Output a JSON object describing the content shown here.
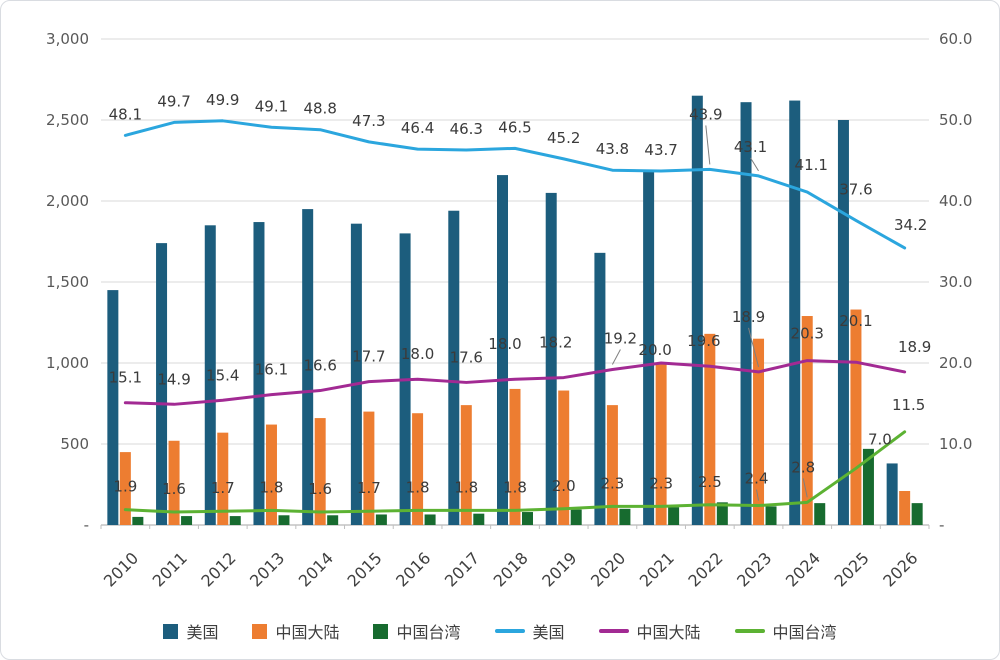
{
  "chart_data": {
    "type": "bar",
    "subtype": "combo-bar-line-dual-axis",
    "categories": [
      "2010",
      "2011",
      "2012",
      "2013",
      "2014",
      "2015",
      "2016",
      "2017",
      "2018",
      "2019",
      "2020",
      "2021",
      "2022",
      "2023",
      "2024",
      "2025",
      "2026"
    ],
    "bar_series": [
      {
        "name": "美国",
        "color": "#1c5d7d",
        "axis": "left",
        "values": [
          1450,
          1740,
          1850,
          1870,
          1950,
          1860,
          1800,
          1940,
          2160,
          2050,
          1680,
          2190,
          2650,
          2610,
          2620,
          2500,
          380
        ]
      },
      {
        "name": "中国大陆",
        "color": "#ed7d31",
        "axis": "left",
        "values": [
          450,
          520,
          570,
          620,
          660,
          700,
          690,
          740,
          840,
          830,
          740,
          1000,
          1180,
          1150,
          1290,
          1330,
          210
        ]
      },
      {
        "name": "中国台湾",
        "color": "#176b2f",
        "axis": "left",
        "values": [
          50,
          55,
          55,
          60,
          60,
          65,
          65,
          70,
          80,
          95,
          100,
          110,
          140,
          115,
          135,
          470,
          135
        ]
      }
    ],
    "line_series": [
      {
        "name": "美国",
        "color": "#2ba6de",
        "axis": "right",
        "values": [
          48.1,
          49.7,
          49.9,
          49.1,
          48.8,
          47.3,
          46.4,
          46.3,
          46.5,
          45.2,
          43.8,
          43.7,
          43.9,
          43.1,
          41.1,
          37.6,
          34.2
        ]
      },
      {
        "name": "中国大陆",
        "color": "#a22a93",
        "axis": "right",
        "values": [
          15.1,
          14.9,
          15.4,
          16.1,
          16.6,
          17.7,
          18.0,
          17.6,
          18.0,
          18.2,
          19.2,
          20.0,
          19.6,
          18.9,
          20.3,
          20.1,
          18.9
        ]
      },
      {
        "name": "中国台湾",
        "color": "#5cb233",
        "axis": "right",
        "values": [
          1.9,
          1.6,
          1.7,
          1.8,
          1.6,
          1.7,
          1.8,
          1.8,
          1.8,
          2.0,
          2.3,
          2.3,
          2.5,
          2.4,
          2.8,
          7.0,
          11.5
        ]
      }
    ],
    "left_axis": {
      "min": 0,
      "max": 3000,
      "step": 500,
      "tick_labels": [
        "3,000",
        "2,500",
        "2,000",
        "1,500",
        "1,000",
        "500",
        "-"
      ]
    },
    "right_axis": {
      "min": 0,
      "max": 60,
      "step": 10,
      "tick_labels": [
        "60.0",
        "50.0",
        "40.0",
        "30.0",
        "20.0",
        "10.0",
        "-"
      ]
    },
    "grid": true,
    "legend_position": "bottom",
    "legend": [
      {
        "label": "美国",
        "type": "bar",
        "color": "#1c5d7d"
      },
      {
        "label": "中国大陆",
        "type": "bar",
        "color": "#ed7d31"
      },
      {
        "label": "中国台湾",
        "type": "bar",
        "color": "#176b2f"
      },
      {
        "label": "美国",
        "type": "line",
        "color": "#2ba6de"
      },
      {
        "label": "中国大陆",
        "type": "line",
        "color": "#a22a93"
      },
      {
        "label": "中国台湾",
        "type": "line",
        "color": "#5cb233"
      }
    ]
  }
}
